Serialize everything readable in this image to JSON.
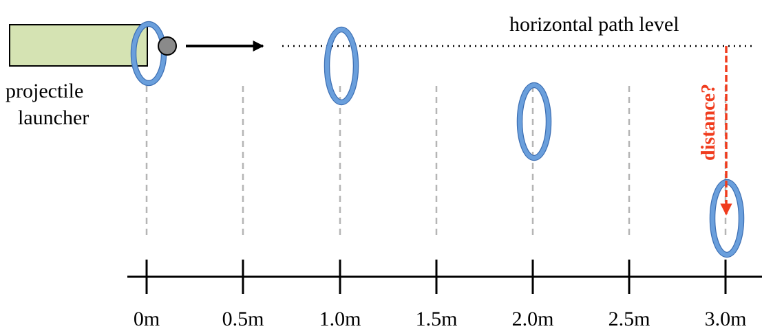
{
  "launcher": {
    "label_lines": [
      "projectile",
      "launcher"
    ]
  },
  "path_label": "horizontal path level",
  "distance_label": "distance?",
  "axis": {
    "tick_labels": [
      "0m",
      "0.5m",
      "1.0m",
      "1.5m",
      "2.0m",
      "2.5m",
      "3.0m"
    ]
  }
}
